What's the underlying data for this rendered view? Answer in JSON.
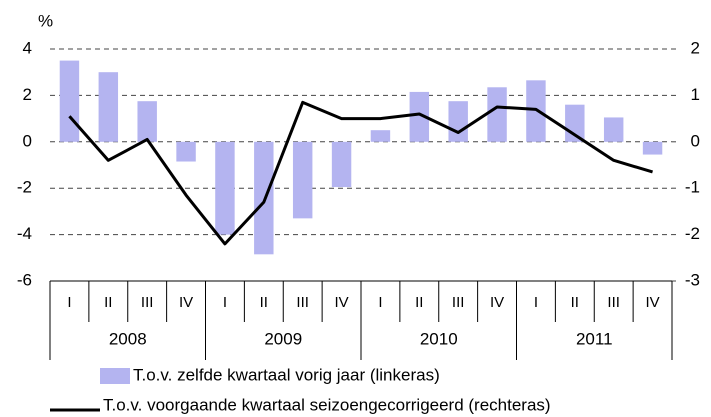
{
  "chart_data": {
    "type": "bar",
    "y_label": "%",
    "categories": [
      "I",
      "II",
      "III",
      "IV",
      "I",
      "II",
      "III",
      "IV",
      "I",
      "II",
      "III",
      "IV",
      "I",
      "II",
      "III",
      "IV"
    ],
    "groups": [
      "2008",
      "2009",
      "2010",
      "2011"
    ],
    "series": [
      {
        "name": "T.o.v. zelfde kwartaal vorig jaar (linkeras)",
        "type": "bar",
        "color": "#b4b4f0",
        "values": [
          3.5,
          3.0,
          1.75,
          -0.85,
          -4.0,
          -4.85,
          -3.3,
          -1.95,
          0.5,
          2.15,
          1.75,
          2.35,
          2.65,
          1.6,
          1.05,
          -0.55
        ]
      },
      {
        "name": "T.o.v. voorgaande kwartaal seizoengecorrigeerd (rechteras)",
        "type": "line",
        "axis": "y2",
        "color": "#000000",
        "values": [
          0.55,
          -0.4,
          0.05,
          -1.15,
          -2.2,
          -1.3,
          0.85,
          0.5,
          0.5,
          0.6,
          0.2,
          0.75,
          0.7,
          0.15,
          -0.4,
          -0.65
        ]
      }
    ],
    "ylim": [
      -6,
      4
    ],
    "yticks": [
      4,
      2,
      0,
      -2,
      -4,
      -6
    ],
    "y2lim": [
      -3,
      2
    ],
    "y2ticks": [
      2,
      1,
      0,
      -1,
      -2,
      -3
    ],
    "grid": true
  }
}
